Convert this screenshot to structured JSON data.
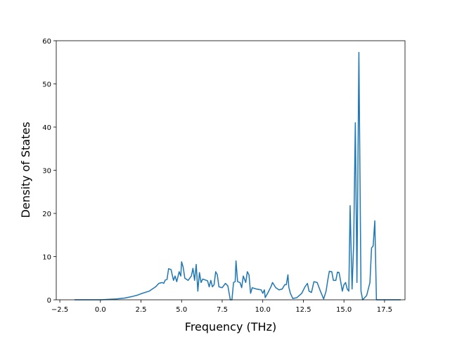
{
  "chart_data": {
    "type": "line",
    "xlabel": "Frequency (THz)",
    "ylabel": "Density of States",
    "color": "#1f77b4",
    "x": [
      -1.6,
      0,
      0.5,
      1,
      1.5,
      2,
      2.3,
      2.5,
      3,
      3.4,
      3.6,
      3.8,
      3.9,
      4.0,
      4.1,
      4.2,
      4.35,
      4.5,
      4.6,
      4.7,
      4.85,
      4.95,
      5.0,
      5.1,
      5.2,
      5.4,
      5.6,
      5.7,
      5.8,
      5.9,
      6.0,
      6.1,
      6.2,
      6.3,
      6.45,
      6.6,
      6.7,
      6.8,
      6.9,
      7.0,
      7.1,
      7.2,
      7.3,
      7.5,
      7.7,
      7.85,
      8.0,
      8.1,
      8.2,
      8.3,
      8.35,
      8.45,
      8.6,
      8.7,
      8.8,
      8.95,
      9.05,
      9.15,
      9.25,
      9.35,
      9.6,
      9.9,
      10.0,
      10.1,
      10.15,
      10.3,
      10.5,
      10.6,
      10.8,
      11.0,
      11.2,
      11.35,
      11.45,
      11.55,
      11.6,
      11.7,
      11.85,
      12.1,
      12.4,
      12.6,
      12.75,
      12.85,
      13.0,
      13.15,
      13.35,
      13.55,
      13.75,
      13.9,
      14.0,
      14.1,
      14.25,
      14.35,
      14.5,
      14.6,
      14.7,
      14.8,
      14.9,
      15.0,
      15.1,
      15.2,
      15.3,
      15.38,
      15.5,
      15.6,
      15.7,
      15.8,
      15.92,
      16.05,
      16.15,
      16.4,
      16.6,
      16.7,
      16.8,
      16.9,
      17.0,
      17.2,
      18.5
    ],
    "values": [
      0,
      0,
      0.1,
      0.2,
      0.4,
      0.8,
      1.1,
      1.4,
      2,
      3,
      3.8,
      4,
      3.8,
      4.6,
      4.7,
      7.2,
      7,
      4.5,
      5.5,
      4.2,
      6.5,
      5.5,
      8.8,
      7.5,
      5,
      4.5,
      5.5,
      7.3,
      4.5,
      8.2,
      2,
      6.3,
      4,
      4.8,
      4.6,
      4.4,
      3,
      4.5,
      3,
      3.5,
      6.5,
      5.8,
      3,
      2.8,
      3.8,
      3.2,
      0,
      0,
      4,
      4.2,
      9,
      4.2,
      4,
      2.8,
      5.5,
      4,
      6.5,
      5.8,
      1.5,
      2.8,
      2.5,
      2.3,
      1.5,
      2.3,
      0.5,
      1.5,
      3,
      4,
      2.8,
      2.3,
      2.5,
      3.5,
      3.5,
      5.8,
      3,
      1.5,
      0.3,
      0.5,
      1.5,
      3,
      3.8,
      2,
      1.7,
      4.2,
      4,
      2,
      0.2,
      2,
      4.5,
      6.6,
      6.5,
      4.5,
      4.5,
      6.4,
      6.3,
      4.2,
      2,
      3.5,
      4,
      2.5,
      2,
      21.8,
      2.5,
      13,
      41,
      4,
      57.3,
      2,
      0,
      1,
      4,
      12,
      12.5,
      18.3,
      0,
      0,
      0
    ],
    "xlim": [
      -2.72,
      18.76
    ],
    "ylim": [
      0,
      60
    ],
    "xticks": [
      {
        "value": -2.5,
        "label": "−2.5"
      },
      {
        "value": 0,
        "label": "0.0"
      },
      {
        "value": 2.5,
        "label": "2.5"
      },
      {
        "value": 5,
        "label": "5.0"
      },
      {
        "value": 7.5,
        "label": "7.5"
      },
      {
        "value": 10,
        "label": "10.0"
      },
      {
        "value": 12.5,
        "label": "12.5"
      },
      {
        "value": 15,
        "label": "15.0"
      },
      {
        "value": 17.5,
        "label": "17.5"
      }
    ],
    "yticks": [
      0,
      10,
      20,
      30,
      40,
      50,
      60
    ]
  }
}
